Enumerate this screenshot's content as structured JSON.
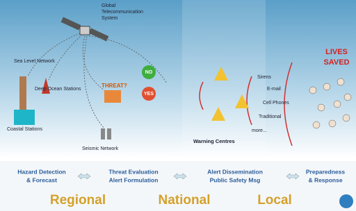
{
  "diagram": {
    "satellite": {
      "lines": [
        "Global",
        "Telecommunication",
        "System"
      ]
    },
    "sensors": [
      {
        "label": "Sea Level Network"
      },
      {
        "label": "Deep Ocean Stations"
      },
      {
        "label": "Coastal Stations"
      },
      {
        "label": "Seismic Network"
      }
    ],
    "decision": {
      "label": "THREAT?",
      "no": "NO",
      "yes": "YES"
    },
    "centres": {
      "label": "Warning Centres"
    },
    "channels": [
      "Sirens",
      "E-mail",
      "Cell Phones",
      "Traditional",
      "more..."
    ],
    "outcome": {
      "lines": [
        "LIVES",
        "SAVED"
      ]
    },
    "stages": [
      {
        "lines": [
          "Hazard Detection",
          "& Forecast"
        ]
      },
      {
        "lines": [
          "Threat Evaluation",
          "Alert Formulation"
        ]
      },
      {
        "lines": [
          "Alert Dissemination",
          "Public Safety Msg"
        ]
      },
      {
        "lines": [
          "Preparedness",
          "& Response"
        ]
      }
    ],
    "levels": [
      "Regional",
      "National",
      "Local"
    ]
  }
}
